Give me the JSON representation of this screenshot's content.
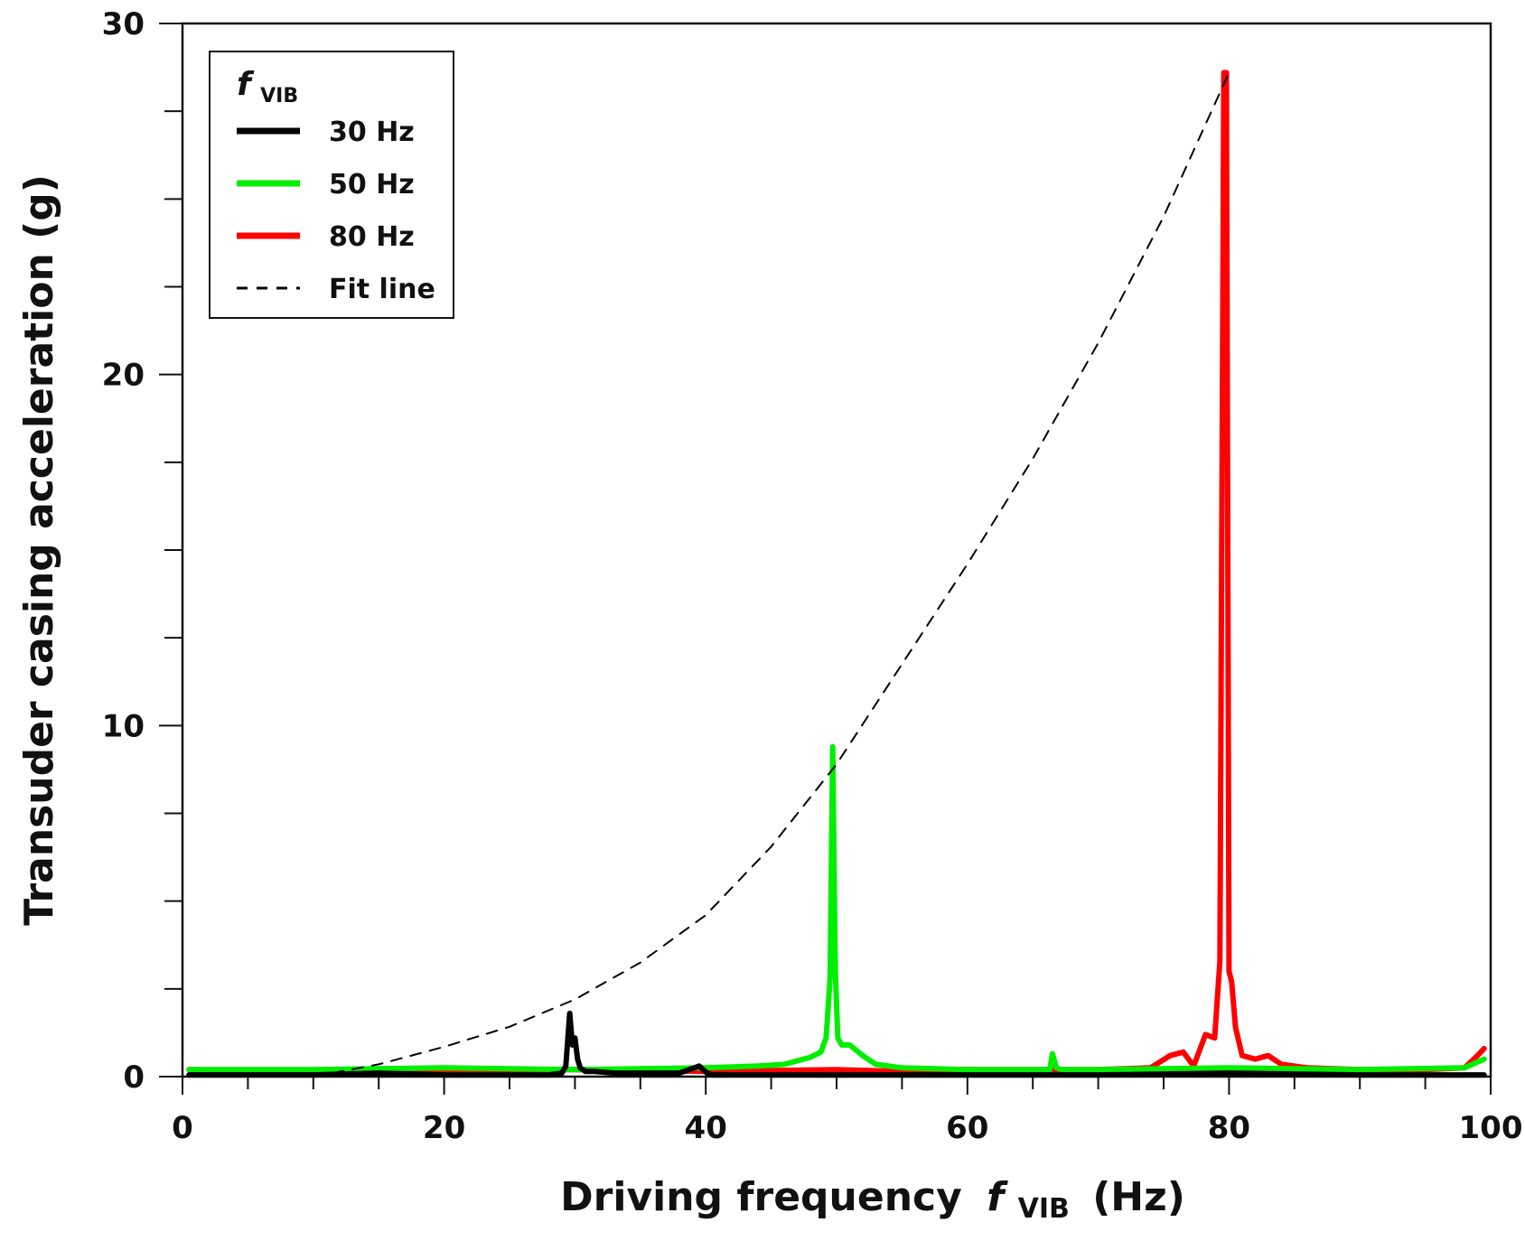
{
  "chart_data": {
    "type": "line",
    "xlabel": "Driving frequency",
    "xlabel_symbol": "f",
    "xlabel_subscript": "VIB",
    "xlabel_unit": "(Hz)",
    "ylabel": "Transuder casing acceleration (g)",
    "xlim": [
      0,
      100
    ],
    "ylim": [
      0,
      30
    ],
    "x_ticks": [
      0,
      20,
      40,
      60,
      80,
      100
    ],
    "x_tick_labels": [
      "0",
      "20",
      "40",
      "60",
      "80",
      "100"
    ],
    "x_minor_step": 5,
    "y_ticks": [
      0,
      10,
      20,
      30
    ],
    "y_tick_labels": [
      "0",
      "10",
      "20",
      "30"
    ],
    "y_minor_step": 2.5,
    "grid": false,
    "legend": {
      "placement": "top-left",
      "title_symbol": "f",
      "title_subscript": "VIB"
    },
    "series": [
      {
        "name": "30 Hz",
        "color": "#000000",
        "x": [
          0.5,
          5,
          10,
          15,
          20,
          25,
          28,
          29,
          29.3,
          29.6,
          29.8,
          30.0,
          30.2,
          30.4,
          30.8,
          31.5,
          33,
          35,
          38,
          39.5,
          39.8,
          40.1,
          40.5,
          45,
          50,
          60,
          70,
          80,
          90,
          99.5
        ],
        "y": [
          0.05,
          0.05,
          0.05,
          0.1,
          0.05,
          0.05,
          0.05,
          0.1,
          0.3,
          1.8,
          0.9,
          1.1,
          0.5,
          0.25,
          0.15,
          0.15,
          0.1,
          0.1,
          0.1,
          0.3,
          0.2,
          0.1,
          0.05,
          0.05,
          0.05,
          0.05,
          0.05,
          0.1,
          0.05,
          0.05
        ]
      },
      {
        "name": "50 Hz",
        "color": "#00ee00",
        "x": [
          0.5,
          10,
          20,
          30,
          40,
          44,
          46,
          47,
          48,
          48.8,
          49.2,
          49.5,
          49.7,
          49.9,
          50.1,
          50.4,
          51,
          52,
          53,
          55,
          60,
          65,
          66.3,
          66.5,
          66.8,
          67.2,
          70,
          80,
          90,
          98,
          99.5
        ],
        "y": [
          0.2,
          0.2,
          0.25,
          0.2,
          0.25,
          0.3,
          0.35,
          0.45,
          0.55,
          0.7,
          1.1,
          2.8,
          9.4,
          3.0,
          1.1,
          0.9,
          0.9,
          0.6,
          0.35,
          0.25,
          0.2,
          0.2,
          0.2,
          0.65,
          0.25,
          0.2,
          0.2,
          0.25,
          0.2,
          0.25,
          0.5
        ]
      },
      {
        "name": "80 Hz",
        "color": "#ff0000",
        "x": [
          0.5,
          10,
          20,
          30,
          40,
          50,
          55,
          60,
          70,
          74,
          75.5,
          76.5,
          77.3,
          78.2,
          78.9,
          79.3,
          79.6,
          79.8,
          80.0,
          80.2,
          80.5,
          81,
          82,
          83,
          84,
          86,
          90,
          95,
          98,
          99,
          99.5
        ],
        "y": [
          0.2,
          0.15,
          0.2,
          0.2,
          0.15,
          0.2,
          0.15,
          0.2,
          0.2,
          0.25,
          0.6,
          0.7,
          0.3,
          1.2,
          1.1,
          3.3,
          28.6,
          28.6,
          3.0,
          2.7,
          1.4,
          0.6,
          0.5,
          0.6,
          0.35,
          0.25,
          0.2,
          0.2,
          0.25,
          0.6,
          0.8
        ]
      },
      {
        "name": "Fit line",
        "color": "#000000",
        "dashed": true,
        "x": [
          10,
          15,
          20,
          25,
          30,
          35,
          40,
          45,
          50,
          55,
          60,
          65,
          70,
          75,
          80
        ],
        "y": [
          0.0,
          0.35,
          0.85,
          1.42,
          2.2,
          3.25,
          4.6,
          6.55,
          8.9,
          11.75,
          14.6,
          17.6,
          20.9,
          24.5,
          28.6
        ]
      }
    ]
  }
}
